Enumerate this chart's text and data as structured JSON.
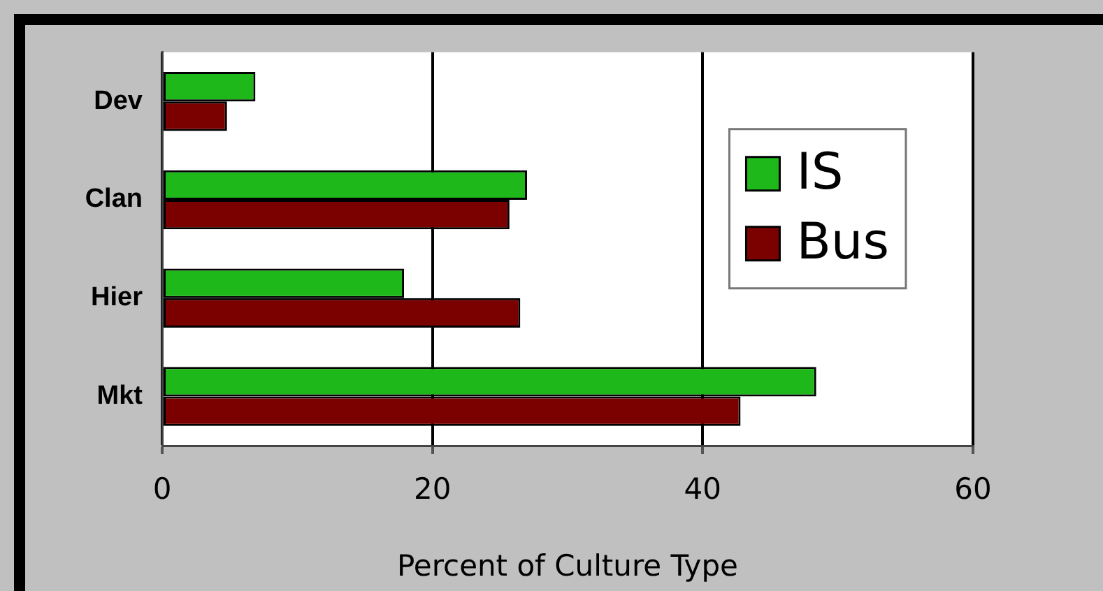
{
  "chart_data": {
    "type": "bar",
    "orientation": "horizontal",
    "xlabel": "Percent of Culture Type",
    "categories": [
      "Dev",
      "Clan",
      "Hier",
      "Mkt"
    ],
    "series": [
      {
        "name": "IS",
        "color": "#1fb81a",
        "values": [
          6.9,
          27.0,
          17.9,
          48.4
        ]
      },
      {
        "name": "Bus",
        "color": "#7b0000",
        "values": [
          4.8,
          25.7,
          26.5,
          42.8
        ]
      }
    ],
    "xlim": [
      0,
      60
    ],
    "xticks": [
      0,
      20,
      40,
      60
    ],
    "grid": "x",
    "legend": "right"
  }
}
